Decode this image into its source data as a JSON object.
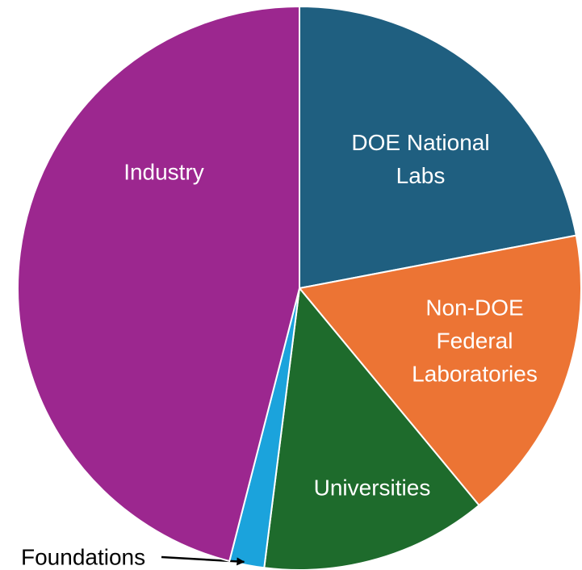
{
  "chart_data": {
    "type": "pie",
    "categories": [
      "DOE National Labs",
      "Non-DOE Federal Laboratories",
      "Universities",
      "Foundations",
      "Industry"
    ],
    "values": [
      22,
      17,
      13,
      2,
      46
    ],
    "colors": [
      "#1f5f80",
      "#ec7434",
      "#1e6b2c",
      "#1ba3dc",
      "#9c278f"
    ]
  }
}
